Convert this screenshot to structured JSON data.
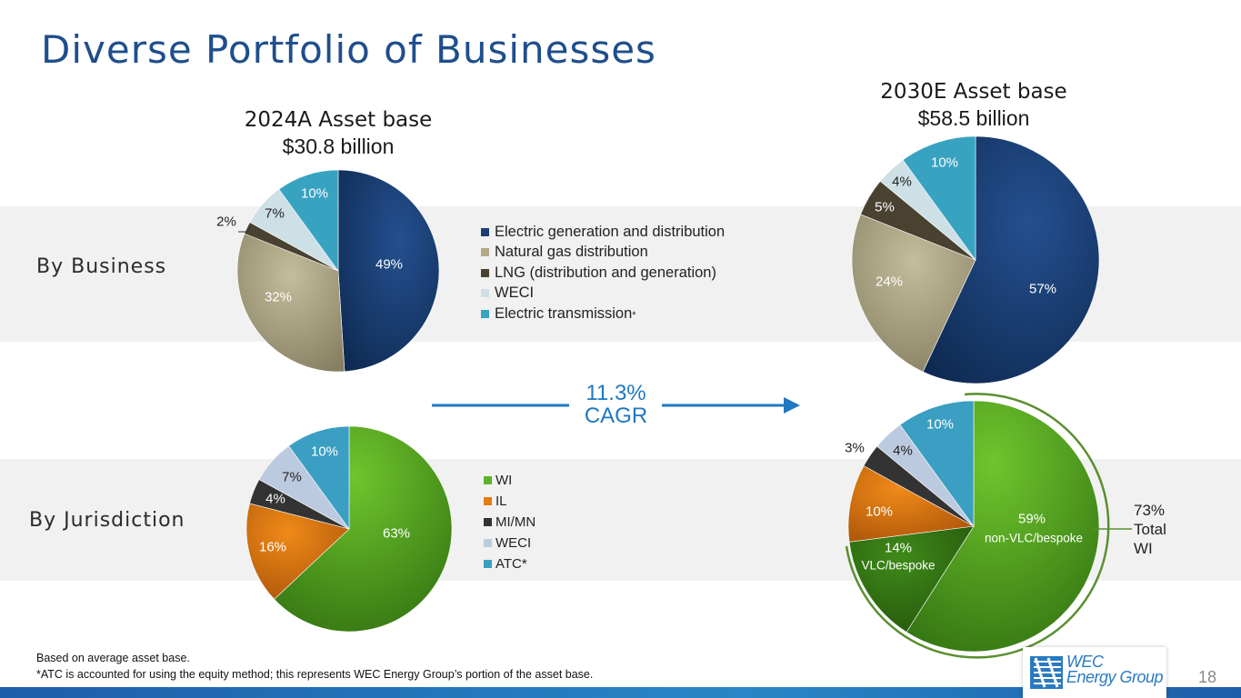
{
  "title": "Diverse Portfolio of Businesses",
  "rows": {
    "business": "By Business",
    "jurisdiction": "By Jurisdiction"
  },
  "cagr": {
    "value": "11.3%",
    "label": "CAGR"
  },
  "total_wi": {
    "pct": "73%",
    "line1": "Total",
    "line2": "WI"
  },
  "footnotes": [
    "Based on average asset base.",
    "*ATC is accounted for using the equity method; this represents WEC Energy Group’s portion of the asset base."
  ],
  "page_number": "18",
  "logo": {
    "line1": "WEC",
    "line2": "Energy Group"
  },
  "legend_business": [
    "Electric generation and distribution",
    "Natural gas distribution",
    "LNG (distribution and generation)",
    "WECI",
    "Electric transmission"
  ],
  "legend_business_asterisk": "*",
  "legend_jurisdiction": [
    "WI",
    "IL",
    "MI/MN",
    "WECI",
    "ATC*"
  ],
  "colors": {
    "business": [
      "#1b3f75",
      "#b2aa86",
      "#4a4230",
      "#cde0e6",
      "#38a3c1"
    ],
    "jurisdiction": [
      "#5fb22a",
      "#e27d16",
      "#333333",
      "#bccadf",
      "#3a9fc2"
    ],
    "accent": "#1f78c1",
    "title": "#1f4e8c"
  },
  "chart_data": [
    {
      "type": "pie",
      "title": "2024A Asset base",
      "subtitle": "$30.8 billion",
      "categories": [
        "Electric generation and distribution",
        "Natural gas distribution",
        "LNG (distribution and generation)",
        "WECI",
        "Electric transmission"
      ],
      "values": [
        49,
        32,
        2,
        7,
        10
      ],
      "labels": [
        "49%",
        "32%",
        "2%",
        "7%",
        "10%"
      ]
    },
    {
      "type": "pie",
      "title": "2030E Asset base",
      "subtitle": "$58.5 billion",
      "categories": [
        "Electric generation and distribution",
        "Natural gas distribution",
        "LNG (distribution and generation)",
        "WECI",
        "Electric transmission"
      ],
      "values": [
        57,
        24,
        5,
        4,
        10
      ],
      "labels": [
        "57%",
        "24%",
        "5%",
        "4%",
        "10%"
      ]
    },
    {
      "type": "pie",
      "title": "",
      "categories": [
        "WI",
        "IL",
        "MI/MN",
        "WECI",
        "ATC*"
      ],
      "values": [
        63,
        16,
        4,
        7,
        10
      ],
      "labels": [
        "63%",
        "16%",
        "4%",
        "7%",
        "10%"
      ]
    },
    {
      "type": "pie",
      "title": "",
      "categories": [
        "WI non-VLC/bespoke",
        "WI VLC/bespoke",
        "IL",
        "MI/MN",
        "WECI",
        "ATC*"
      ],
      "values": [
        59,
        14,
        10,
        3,
        4,
        10
      ],
      "labels": [
        "59%",
        "14%",
        "10%",
        "3%",
        "4%",
        "10%"
      ],
      "sublabels": [
        "non-VLC/bespoke",
        "VLC/bespoke",
        "",
        "",
        "",
        ""
      ]
    }
  ]
}
